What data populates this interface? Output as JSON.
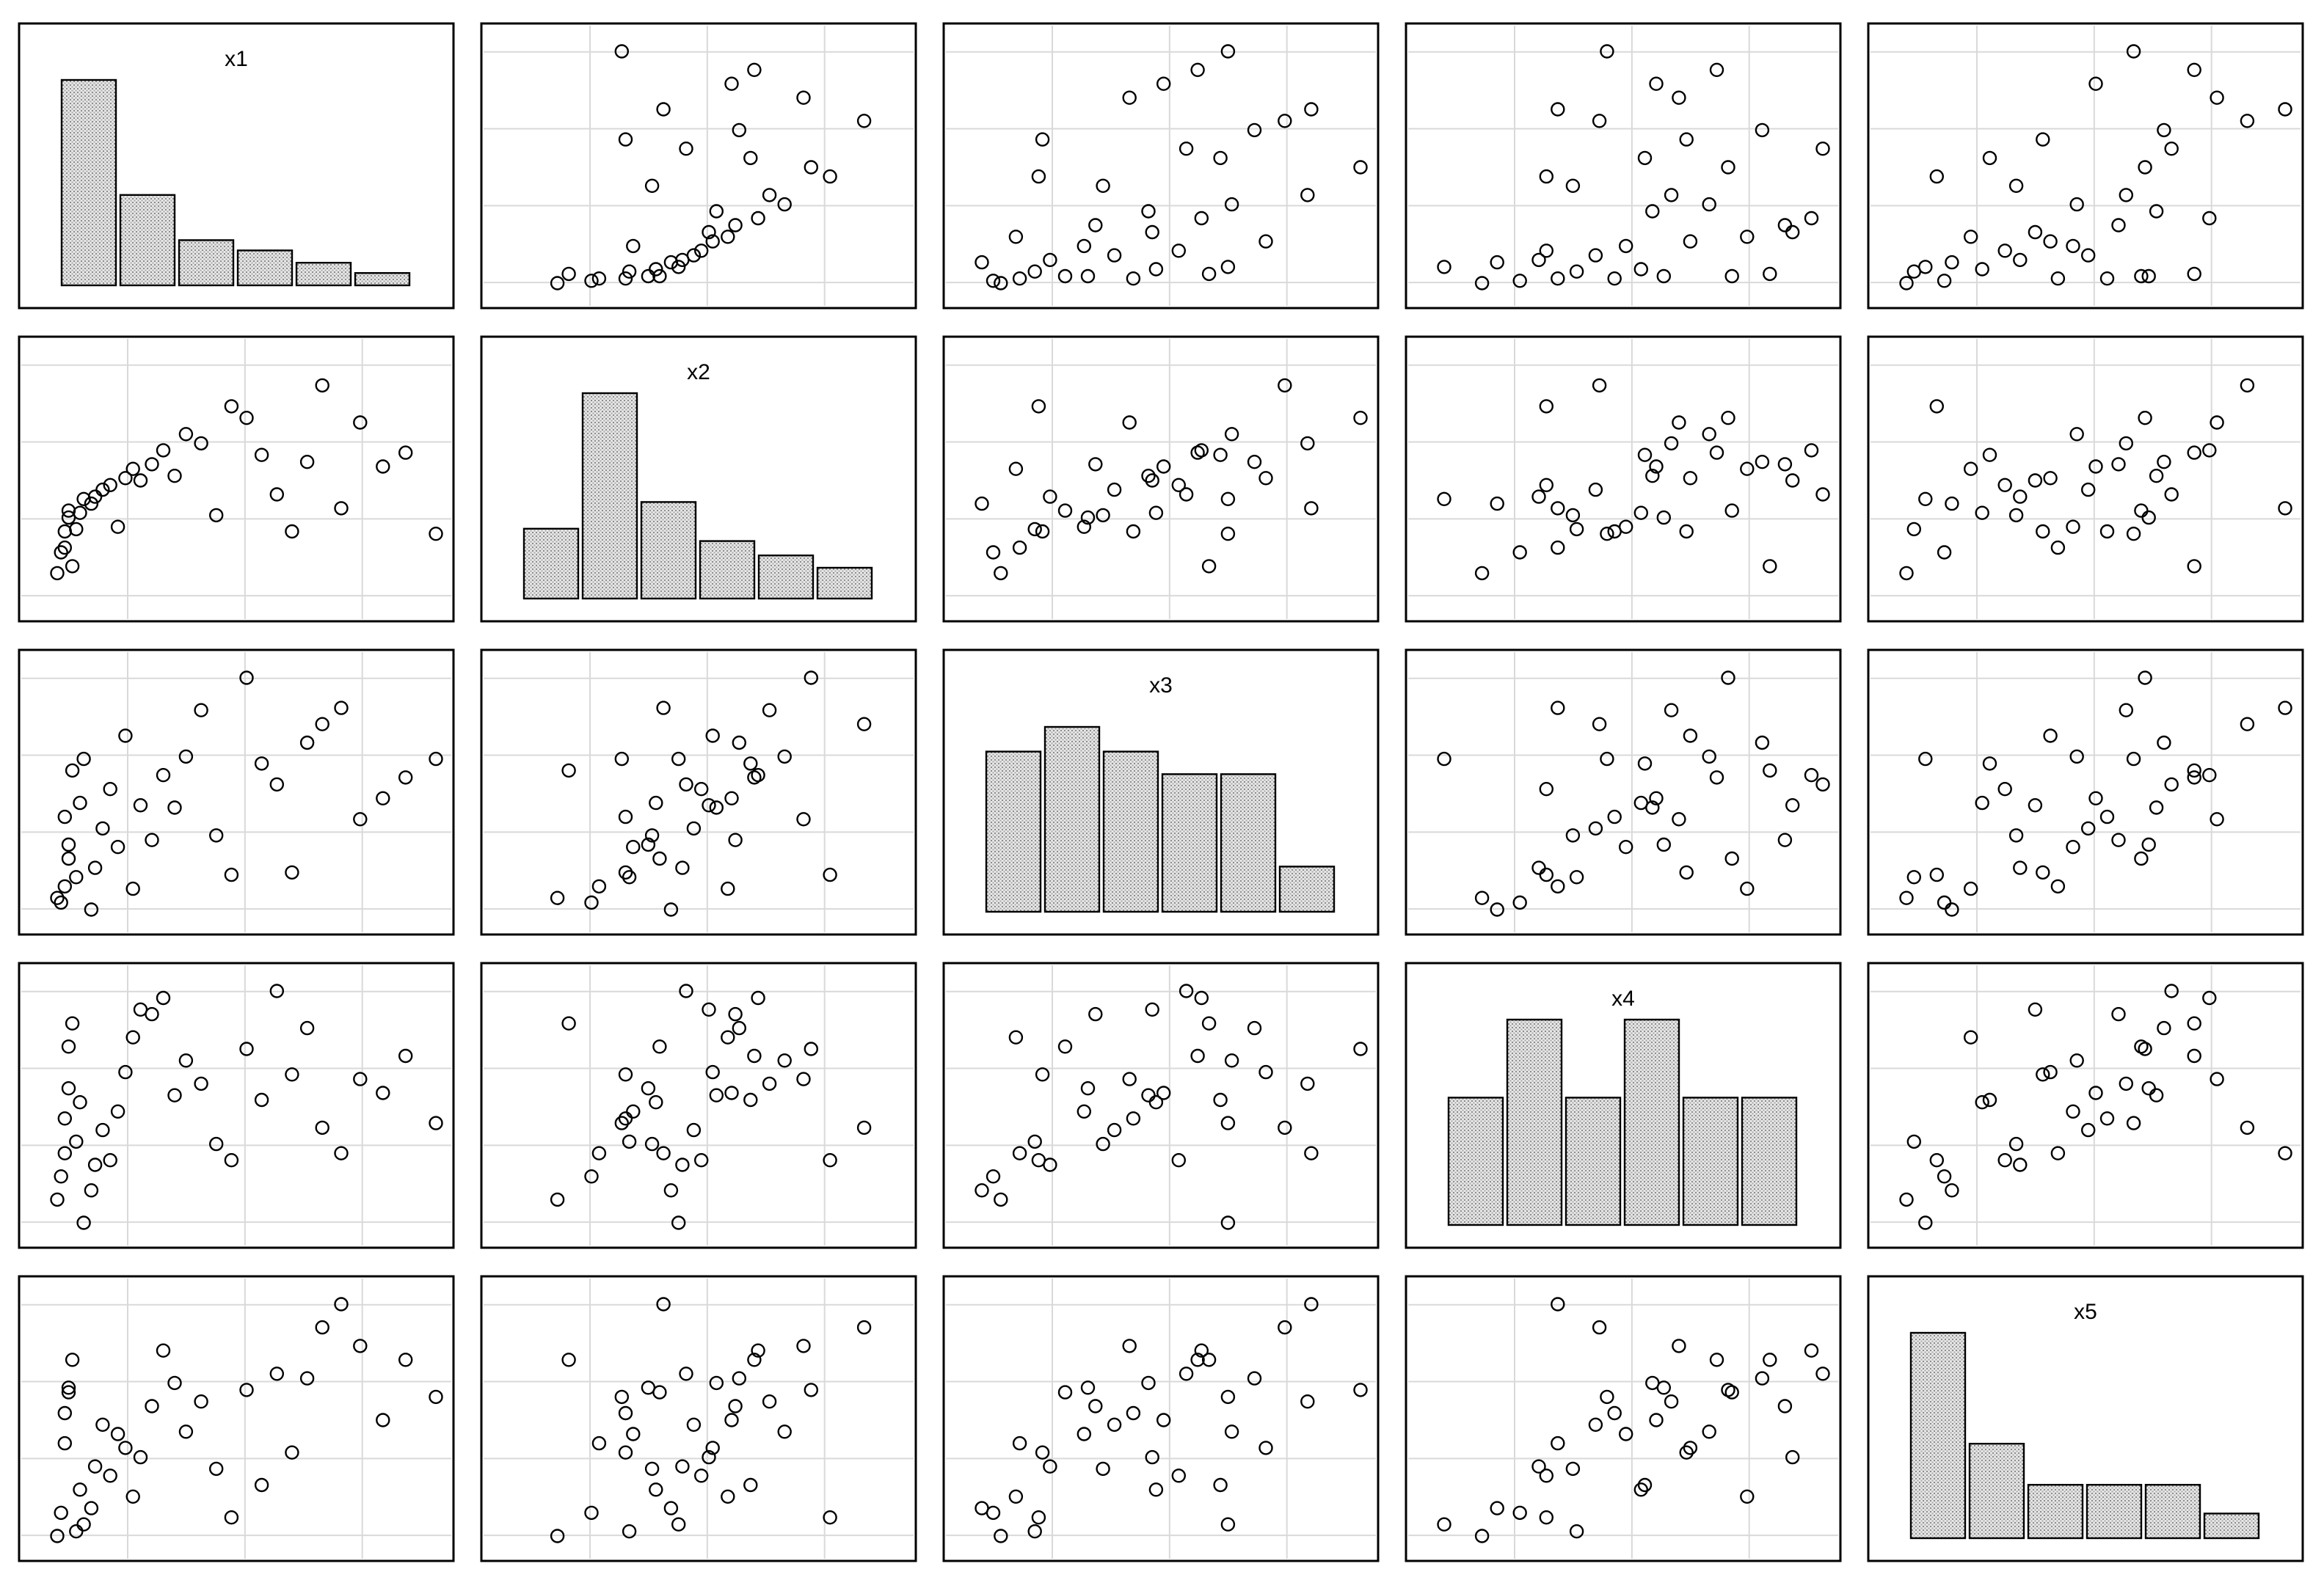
{
  "chart_data": {
    "type": "scatter_matrix",
    "variables": [
      "x1",
      "x2",
      "x3",
      "x4",
      "x5"
    ],
    "diagonal": "histogram",
    "off_diagonal": "scatter",
    "grid": true,
    "point_style": "open-circle",
    "bar_fill": "dotted-gray",
    "histograms": {
      "x1": [
        1.0,
        0.44,
        0.22,
        0.17,
        0.11,
        0.06
      ],
      "x2": [
        0.34,
        1.0,
        0.47,
        0.28,
        0.21,
        0.15
      ],
      "x3": [
        0.78,
        0.9,
        0.78,
        0.67,
        0.67,
        0.22
      ],
      "x4": [
        0.62,
        1.0,
        0.62,
        1.0,
        0.62,
        0.62
      ],
      "x5": [
        1.0,
        0.46,
        0.26,
        0.26,
        0.26,
        0.12
      ]
    },
    "data": {
      "x1": [
        0.0,
        0.01,
        0.02,
        0.02,
        0.03,
        0.03,
        0.04,
        0.05,
        0.06,
        0.07,
        0.09,
        0.1,
        0.12,
        0.14,
        0.16,
        0.18,
        0.2,
        0.22,
        0.25,
        0.28,
        0.31,
        0.34,
        0.38,
        0.42,
        0.46,
        0.5,
        0.54,
        0.58,
        0.62,
        0.66,
        0.7,
        0.75,
        0.8,
        0.86,
        0.92,
        1.0
      ],
      "x2": [
        0.1,
        0.19,
        0.21,
        0.28,
        0.34,
        0.37,
        0.13,
        0.29,
        0.36,
        0.42,
        0.4,
        0.43,
        0.46,
        0.48,
        0.3,
        0.51,
        0.55,
        0.5,
        0.57,
        0.63,
        0.52,
        0.7,
        0.66,
        0.35,
        0.82,
        0.77,
        0.61,
        0.44,
        0.28,
        0.58,
        0.91,
        0.38,
        0.75,
        0.56,
        0.62,
        0.27
      ],
      "x3": [
        0.05,
        0.03,
        0.1,
        0.4,
        0.28,
        0.22,
        0.6,
        0.14,
        0.46,
        0.65,
        0.0,
        0.18,
        0.35,
        0.52,
        0.27,
        0.75,
        0.09,
        0.45,
        0.3,
        0.58,
        0.44,
        0.66,
        0.86,
        0.32,
        0.15,
        1.0,
        0.63,
        0.54,
        0.16,
        0.72,
        0.8,
        0.87,
        0.39,
        0.48,
        0.57,
        0.65
      ],
      "x4": [
        0.1,
        0.2,
        0.3,
        0.45,
        0.58,
        0.76,
        0.86,
        0.35,
        0.52,
        0.0,
        0.14,
        0.25,
        0.4,
        0.27,
        0.48,
        0.65,
        0.8,
        0.92,
        0.9,
        0.97,
        0.55,
        0.7,
        0.6,
        0.34,
        0.27,
        0.75,
        0.53,
        1.0,
        0.64,
        0.84,
        0.41,
        0.3,
        0.62,
        0.56,
        0.72,
        0.43
      ],
      "x5": [
        0.0,
        0.1,
        0.4,
        0.53,
        0.64,
        0.62,
        0.76,
        0.02,
        0.2,
        0.05,
        0.12,
        0.3,
        0.48,
        0.26,
        0.44,
        0.38,
        0.17,
        0.34,
        0.56,
        0.8,
        0.66,
        0.45,
        0.58,
        0.29,
        0.08,
        0.63,
        0.22,
        0.7,
        0.36,
        0.68,
        0.9,
        1.0,
        0.82,
        0.5,
        0.76,
        0.6
      ]
    }
  }
}
